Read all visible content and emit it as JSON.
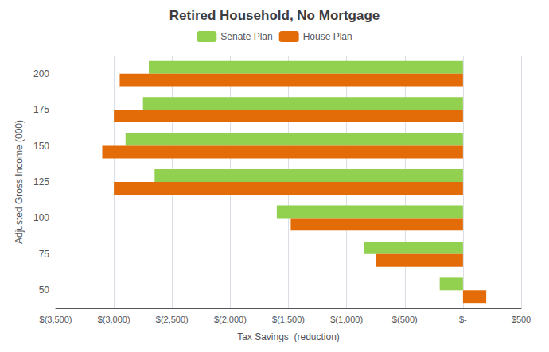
{
  "chart_data": {
    "type": "bar",
    "orientation": "horizontal",
    "title": "Retired Household, No Mortgage",
    "xlabel": "Tax Savings  (reduction)",
    "ylabel": "Adjusted Gross Income (000)",
    "categories": [
      50,
      75,
      100,
      125,
      150,
      175,
      200
    ],
    "series": [
      {
        "name": "Senate Plan",
        "color": "#92D050",
        "values": [
          -200,
          -850,
          -1600,
          -2650,
          -2900,
          -2750,
          -2700
        ]
      },
      {
        "name": "House Plan",
        "color": "#E36C09",
        "values": [
          200,
          -750,
          -1480,
          -3000,
          -3100,
          -3000,
          -2950
        ]
      }
    ],
    "xlim": [
      -3500,
      500
    ],
    "xticks": [
      {
        "value": -3500,
        "label": "$(3,500)"
      },
      {
        "value": -3000,
        "label": "$(3,000)"
      },
      {
        "value": -2500,
        "label": "$(2,500)"
      },
      {
        "value": -2000,
        "label": "$(2,000)"
      },
      {
        "value": -1500,
        "label": "$(1,500)"
      },
      {
        "value": -1000,
        "label": "$(1,000)"
      },
      {
        "value": -500,
        "label": "$(500)"
      },
      {
        "value": 0,
        "label": "$-"
      },
      {
        "value": 500,
        "label": "$500"
      }
    ],
    "grid": true,
    "legend": "top"
  }
}
